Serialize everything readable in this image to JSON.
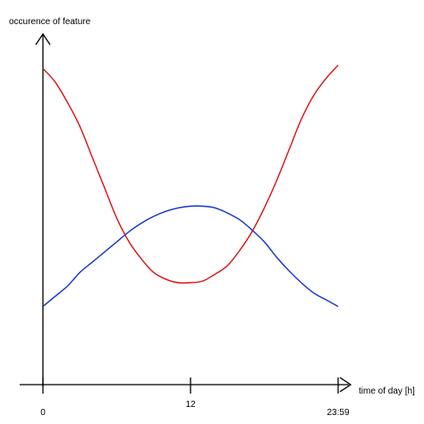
{
  "chart_data": {
    "type": "line",
    "title": "",
    "xlabel": "time of day [h]",
    "ylabel": "occurence of feature",
    "xlim": [
      0,
      24
    ],
    "ylim": [
      0,
      10
    ],
    "grid": false,
    "x_ticks": [
      {
        "value": 0,
        "label": "0"
      },
      {
        "value": 12,
        "label": "12"
      },
      {
        "value": 24,
        "label": "23:59"
      }
    ],
    "series": [
      {
        "color": "#dd1111",
        "x": [
          0,
          1,
          2,
          3,
          4,
          5,
          6,
          7,
          8,
          9,
          10,
          11,
          12,
          13,
          14,
          15,
          16,
          17,
          18,
          19,
          20,
          21,
          22,
          23,
          24
        ],
        "y": [
          9.3,
          8.9,
          8.3,
          7.6,
          6.7,
          5.8,
          4.9,
          4.2,
          3.7,
          3.3,
          3.1,
          3.0,
          3.0,
          3.05,
          3.25,
          3.5,
          3.95,
          4.5,
          5.2,
          6.0,
          6.9,
          7.8,
          8.5,
          9.0,
          9.4
        ]
      },
      {
        "color": "#1133cc",
        "x": [
          0,
          1,
          2,
          3,
          4,
          5,
          6,
          7,
          8,
          9,
          10,
          11,
          12,
          13,
          14,
          15,
          16,
          17,
          18,
          19,
          20,
          21,
          22,
          23,
          24
        ],
        "y": [
          2.3,
          2.6,
          2.9,
          3.3,
          3.6,
          3.9,
          4.2,
          4.5,
          4.75,
          4.95,
          5.1,
          5.2,
          5.25,
          5.25,
          5.2,
          5.05,
          4.85,
          4.55,
          4.2,
          3.75,
          3.35,
          3.0,
          2.7,
          2.5,
          2.3
        ]
      }
    ]
  }
}
